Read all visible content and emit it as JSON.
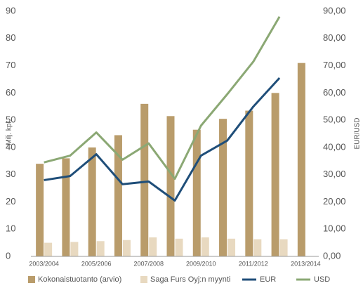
{
  "chart_data": {
    "type": "bar_line",
    "ylabel": "Milj. kpl",
    "y2label": "EUR/USD",
    "categories": [
      "2003/2004",
      null,
      "2005/2006",
      null,
      "2007/2008",
      null,
      "2009/2010",
      null,
      "2011/2012",
      null,
      "2013/2014"
    ],
    "ylim": [
      0,
      90
    ],
    "yticks": [
      0,
      10,
      20,
      30,
      40,
      50,
      60,
      70,
      80,
      90
    ],
    "y2lim": [
      0,
      90
    ],
    "y2ticks": [
      {
        "value": 0,
        "label": "0,00"
      },
      {
        "value": 10,
        "label": "10,00"
      },
      {
        "value": 20,
        "label": "20,00"
      },
      {
        "value": 30,
        "label": "30,00"
      },
      {
        "value": 40,
        "label": "40,00"
      },
      {
        "value": 50,
        "label": "50,00"
      },
      {
        "value": 60,
        "label": "60,00"
      },
      {
        "value": 70,
        "label": "70,00"
      },
      {
        "value": 80,
        "label": "80,00"
      },
      {
        "value": 90,
        "label": "90,00"
      }
    ],
    "grid": false,
    "series": [
      {
        "name": "Kokonaistuotanto (arvio)",
        "kind": "bar",
        "color": "#b99c6b",
        "values": [
          34,
          36,
          40,
          44.5,
          56,
          51.5,
          46.5,
          50.5,
          53.5,
          60,
          71
        ]
      },
      {
        "name": "Saga Furs Oyj:n myynti",
        "kind": "bar",
        "color": "#e8d9c0",
        "values": [
          5,
          5.3,
          5.6,
          6,
          7,
          6.5,
          7,
          6.5,
          6.3,
          6.3,
          null
        ]
      },
      {
        "name": "EUR",
        "kind": "line",
        "axis": "y2",
        "color": "#1f4e79",
        "values": [
          28,
          29.5,
          37.5,
          26.5,
          27.5,
          20.5,
          37,
          42.5,
          55,
          65.5,
          null
        ]
      },
      {
        "name": "USD",
        "kind": "line",
        "axis": "y2",
        "color": "#8ba874",
        "values": [
          34.5,
          37,
          45.5,
          35.5,
          41.5,
          28.5,
          48,
          59.5,
          71.5,
          88,
          null
        ]
      }
    ]
  }
}
